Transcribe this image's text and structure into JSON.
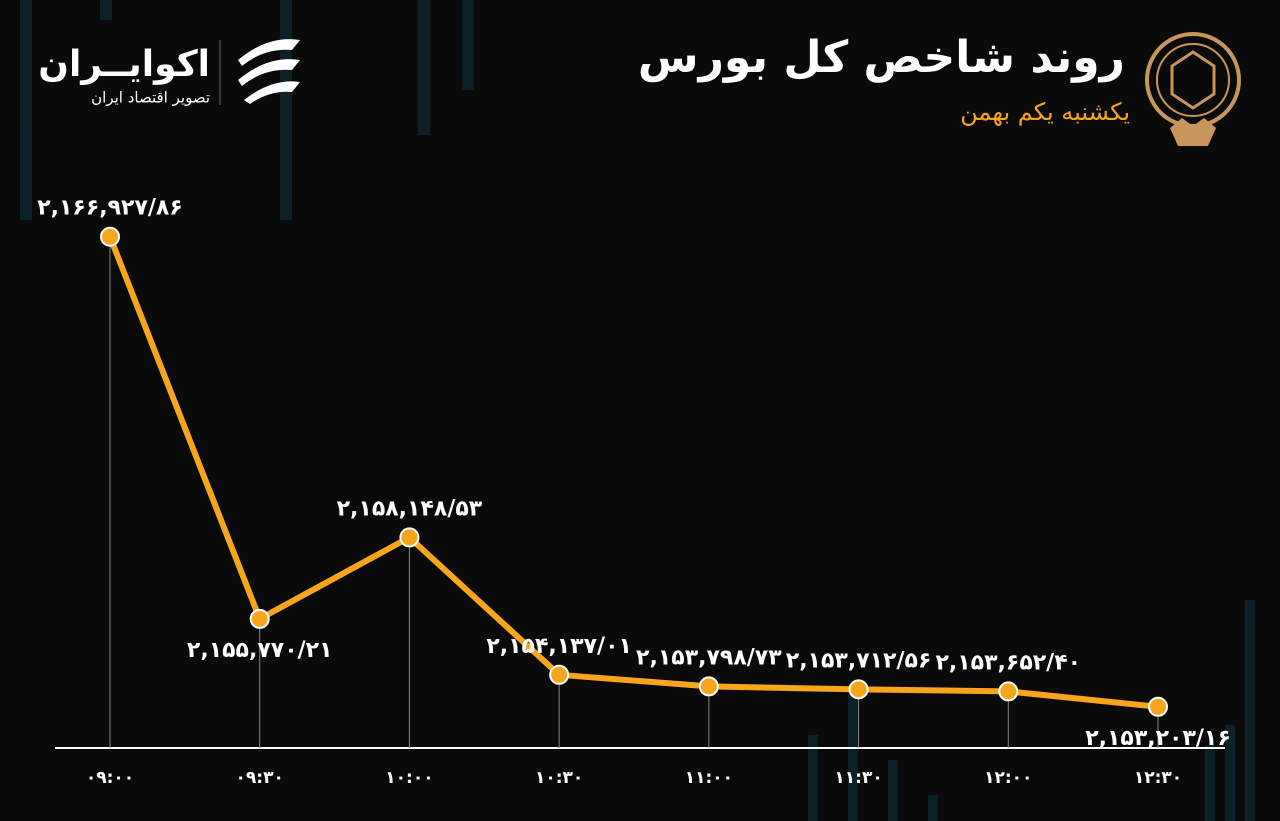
{
  "chart_data": {
    "type": "line",
    "title": "روند شاخص کل بورس",
    "subtitle": "یکشنبه یکم بهمن",
    "brand": "اکوایــران",
    "brand_tagline": "تصویر اقتصاد ایران",
    "categories": [
      "۰۹:۰۰",
      "۰۹:۳۰",
      "۱۰:۰۰",
      "۱۰:۳۰",
      "۱۱:۰۰",
      "۱۱:۳۰",
      "۱۲:۰۰",
      "۱۲:۳۰"
    ],
    "series": [
      {
        "name": "شاخص کل",
        "color": "#f7a51c",
        "values": [
          2166927.86,
          2155770.21,
          2158148.53,
          2154137.01,
          2153798.73,
          2153712.56,
          2153652.4,
          2153203.16
        ],
        "value_labels": [
          "۲,۱۶۶,۹۲۷/۸۶",
          "۲,۱۵۵,۷۷۰/۲۱",
          "۲,۱۵۸,۱۴۸/۵۳",
          "۲,۱۵۴,۱۳۷/۰۱",
          "۲,۱۵۳,۷۹۸/۷۳",
          "۲,۱۵۳,۷۱۲/۵۶",
          "۲,۱۵۳,۶۵۲/۴۰",
          "۲,۱۵۳,۲۰۳/۱۶"
        ]
      }
    ],
    "ylim": [
      2152000,
      2168000
    ]
  }
}
